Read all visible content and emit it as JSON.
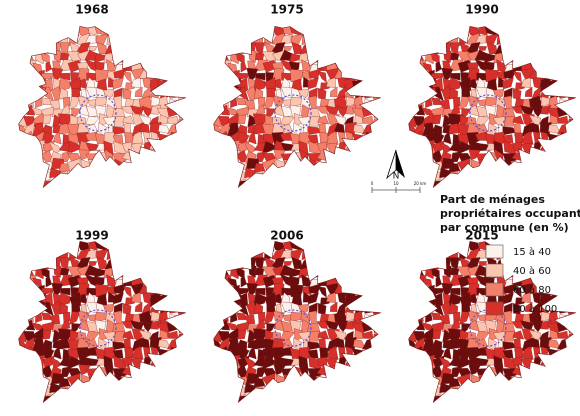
{
  "panels": [
    {
      "title": "1968"
    },
    {
      "title": "1975"
    },
    {
      "title": "1990"
    },
    {
      "title": "1999"
    },
    {
      "title": "2006"
    },
    {
      "title": "2015"
    }
  ],
  "north_arrow": {
    "label": "N"
  },
  "scale_bar": {
    "labels": [
      "0",
      "10",
      "20 km"
    ]
  },
  "legend": {
    "title_lines": [
      "Part de ménages",
      "propriétaires occupants,",
      "par commune (en %)"
    ],
    "items": [
      {
        "label": "15 à 40",
        "color": "#fdf1ec"
      },
      {
        "label": "40 à 60",
        "color": "#fcc5b0"
      },
      {
        "label": "60 à 80",
        "color": "#f4806a"
      },
      {
        "label": "80 à 100",
        "color": "#d7302a"
      }
    ]
  }
}
